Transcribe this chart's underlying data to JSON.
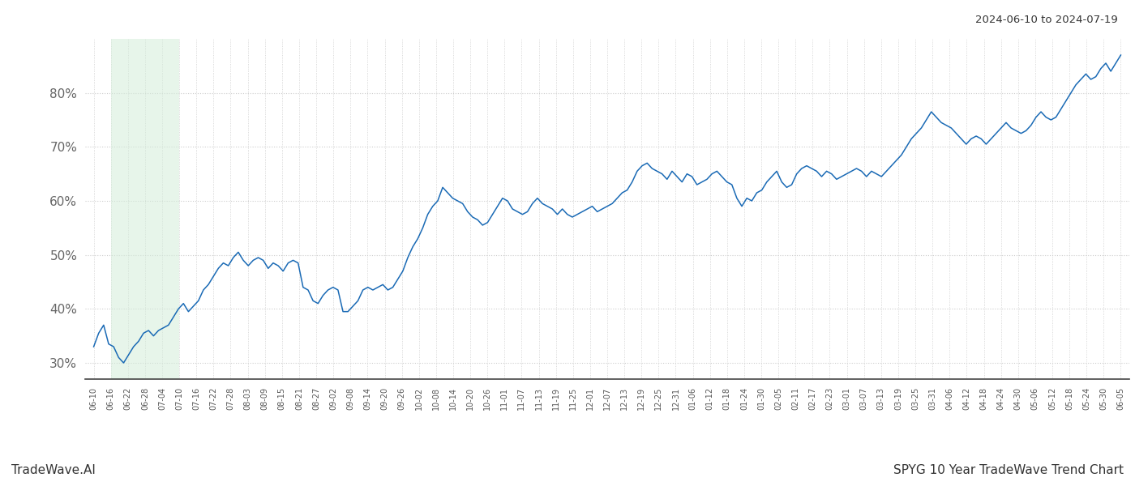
{
  "title_top_right": "2024-06-10 to 2024-07-19",
  "footer_left": "TradeWave.AI",
  "footer_right": "SPYG 10 Year TradeWave Trend Chart",
  "background_color": "#ffffff",
  "line_color": "#1a6ab5",
  "line_width": 1.1,
  "green_shade_color": "#d4edda",
  "green_shade_alpha": 0.55,
  "ylim": [
    27,
    90
  ],
  "yticks": [
    30,
    40,
    50,
    60,
    70,
    80
  ],
  "grid_color": "#cccccc",
  "x_labels": [
    "06-10",
    "06-16",
    "06-22",
    "06-28",
    "07-04",
    "07-10",
    "07-16",
    "07-22",
    "07-28",
    "08-03",
    "08-09",
    "08-15",
    "08-21",
    "08-27",
    "09-02",
    "09-08",
    "09-14",
    "09-20",
    "09-26",
    "10-02",
    "10-08",
    "10-14",
    "10-20",
    "10-26",
    "11-01",
    "11-07",
    "11-13",
    "11-19",
    "11-25",
    "12-01",
    "12-07",
    "12-13",
    "12-19",
    "12-25",
    "12-31",
    "01-06",
    "01-12",
    "01-18",
    "01-24",
    "01-30",
    "02-05",
    "02-11",
    "02-17",
    "02-23",
    "03-01",
    "03-07",
    "03-13",
    "03-19",
    "03-25",
    "03-31",
    "04-06",
    "04-12",
    "04-18",
    "04-24",
    "04-30",
    "05-06",
    "05-12",
    "05-18",
    "05-24",
    "05-30",
    "06-05"
  ],
  "green_shade_start_label": "06-16",
  "green_shade_end_label": "07-10",
  "values": [
    33.0,
    35.5,
    37.0,
    33.5,
    33.0,
    31.0,
    30.0,
    31.5,
    33.0,
    34.0,
    35.5,
    36.0,
    35.0,
    36.0,
    36.5,
    37.0,
    38.5,
    40.0,
    41.0,
    39.5,
    40.5,
    41.5,
    43.5,
    44.5,
    46.0,
    47.5,
    48.5,
    48.0,
    49.5,
    50.5,
    49.0,
    48.0,
    49.0,
    49.5,
    49.0,
    47.5,
    48.5,
    48.0,
    47.0,
    48.5,
    49.0,
    48.5,
    44.0,
    43.5,
    41.5,
    41.0,
    42.5,
    43.5,
    44.0,
    43.5,
    39.5,
    39.5,
    40.5,
    41.5,
    43.5,
    44.0,
    43.5,
    44.0,
    44.5,
    43.5,
    44.0,
    45.5,
    47.0,
    49.5,
    51.5,
    53.0,
    55.0,
    57.5,
    59.0,
    60.0,
    62.5,
    61.5,
    60.5,
    60.0,
    59.5,
    58.0,
    57.0,
    56.5,
    55.5,
    56.0,
    57.5,
    59.0,
    60.5,
    60.0,
    58.5,
    58.0,
    57.5,
    58.0,
    59.5,
    60.5,
    59.5,
    59.0,
    58.5,
    57.5,
    58.5,
    57.5,
    57.0,
    57.5,
    58.0,
    58.5,
    59.0,
    58.0,
    58.5,
    59.0,
    59.5,
    60.5,
    61.5,
    62.0,
    63.5,
    65.5,
    66.5,
    67.0,
    66.0,
    65.5,
    65.0,
    64.0,
    65.5,
    64.5,
    63.5,
    65.0,
    64.5,
    63.0,
    63.5,
    64.0,
    65.0,
    65.5,
    64.5,
    63.5,
    63.0,
    60.5,
    59.0,
    60.5,
    60.0,
    61.5,
    62.0,
    63.5,
    64.5,
    65.5,
    63.5,
    62.5,
    63.0,
    65.0,
    66.0,
    66.5,
    66.0,
    65.5,
    64.5,
    65.5,
    65.0,
    64.0,
    64.5,
    65.0,
    65.5,
    66.0,
    65.5,
    64.5,
    65.5,
    65.0,
    64.5,
    65.5,
    66.5,
    67.5,
    68.5,
    70.0,
    71.5,
    72.5,
    73.5,
    75.0,
    76.5,
    75.5,
    74.5,
    74.0,
    73.5,
    72.5,
    71.5,
    70.5,
    71.5,
    72.0,
    71.5,
    70.5,
    71.5,
    72.5,
    73.5,
    74.5,
    73.5,
    73.0,
    72.5,
    73.0,
    74.0,
    75.5,
    76.5,
    75.5,
    75.0,
    75.5,
    77.0,
    78.5,
    80.0,
    81.5,
    82.5,
    83.5,
    82.5,
    83.0,
    84.5,
    85.5,
    84.0,
    85.5,
    87.0
  ]
}
